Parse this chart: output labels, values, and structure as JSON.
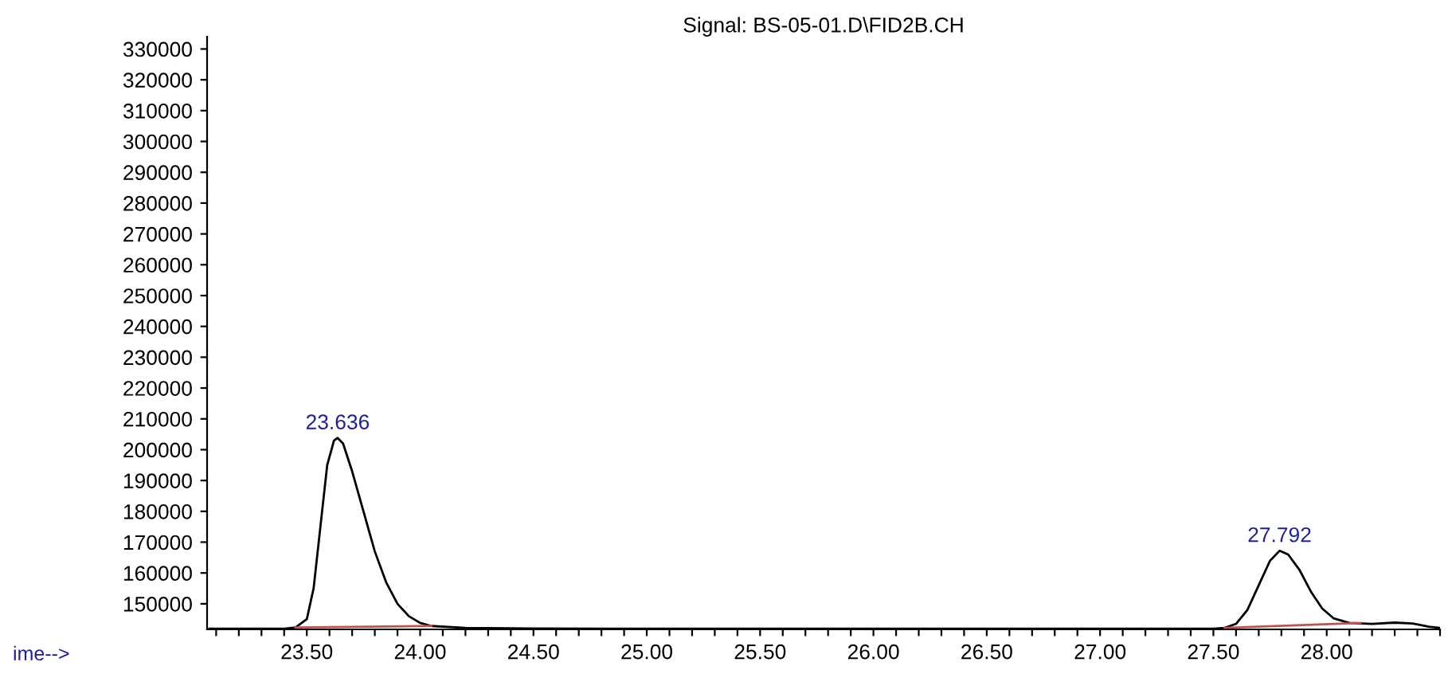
{
  "chart_data": {
    "type": "line",
    "title": "Signal: BS-05-01.D\\FID2B.CH",
    "x": [
      23.07,
      23.4,
      23.45,
      23.5,
      23.53,
      23.56,
      23.59,
      23.62,
      23.636,
      23.66,
      23.7,
      23.75,
      23.8,
      23.85,
      23.9,
      23.95,
      24.0,
      24.05,
      24.2,
      24.5,
      25.0,
      27.5,
      27.55,
      27.6,
      27.65,
      27.7,
      27.75,
      27.792,
      27.83,
      27.88,
      27.93,
      27.98,
      28.03,
      28.1,
      28.2,
      28.3,
      28.38,
      28.45,
      28.5
    ],
    "series": [
      {
        "color": "#000000",
        "values": [
          141900,
          141900,
          142300,
          145000,
          155000,
          175000,
          195000,
          203000,
          203800,
          202000,
          193000,
          180000,
          167000,
          157000,
          150000,
          146000,
          143800,
          142800,
          142200,
          142000,
          141900,
          141900,
          142200,
          143500,
          148000,
          156000,
          164000,
          167200,
          166000,
          161000,
          154000,
          148500,
          145300,
          143800,
          143500,
          143900,
          143600,
          142600,
          142200
        ]
      },
      {
        "color": "#c0504d",
        "x": [
          23.45,
          24.05
        ],
        "values": [
          142300,
          142800
        ]
      },
      {
        "color": "#c0504d",
        "x": [
          27.55,
          28.15
        ],
        "values": [
          142200,
          143800
        ]
      }
    ],
    "xlim": [
      23.06,
      28.5
    ],
    "ylim": [
      141700,
      334000
    ],
    "xticks": [
      {
        "value": 23.1,
        "label": null
      },
      {
        "value": 23.2,
        "label": null
      },
      {
        "value": 23.3,
        "label": null
      },
      {
        "value": 23.4,
        "label": null
      },
      {
        "value": 23.5,
        "label": "23.50"
      },
      {
        "value": 23.6,
        "label": null
      },
      {
        "value": 23.7,
        "label": null
      },
      {
        "value": 23.8,
        "label": null
      },
      {
        "value": 23.9,
        "label": null
      },
      {
        "value": 24.0,
        "label": "24.00"
      },
      {
        "value": 24.1,
        "label": null
      },
      {
        "value": 24.2,
        "label": null
      },
      {
        "value": 24.3,
        "label": null
      },
      {
        "value": 24.4,
        "label": null
      },
      {
        "value": 24.5,
        "label": "24.50"
      },
      {
        "value": 24.6,
        "label": null
      },
      {
        "value": 24.7,
        "label": null
      },
      {
        "value": 24.8,
        "label": null
      },
      {
        "value": 24.9,
        "label": null
      },
      {
        "value": 25.0,
        "label": "25.00"
      },
      {
        "value": 25.1,
        "label": null
      },
      {
        "value": 25.2,
        "label": null
      },
      {
        "value": 25.3,
        "label": null
      },
      {
        "value": 25.4,
        "label": null
      },
      {
        "value": 25.5,
        "label": "25.50"
      },
      {
        "value": 25.6,
        "label": null
      },
      {
        "value": 25.7,
        "label": null
      },
      {
        "value": 25.8,
        "label": null
      },
      {
        "value": 25.9,
        "label": null
      },
      {
        "value": 26.0,
        "label": "26.00"
      },
      {
        "value": 26.1,
        "label": null
      },
      {
        "value": 26.2,
        "label": null
      },
      {
        "value": 26.3,
        "label": null
      },
      {
        "value": 26.4,
        "label": null
      },
      {
        "value": 26.5,
        "label": "26.50"
      },
      {
        "value": 26.6,
        "label": null
      },
      {
        "value": 26.7,
        "label": null
      },
      {
        "value": 26.8,
        "label": null
      },
      {
        "value": 26.9,
        "label": null
      },
      {
        "value": 27.0,
        "label": "27.00"
      },
      {
        "value": 27.1,
        "label": null
      },
      {
        "value": 27.2,
        "label": null
      },
      {
        "value": 27.3,
        "label": null
      },
      {
        "value": 27.4,
        "label": null
      },
      {
        "value": 27.5,
        "label": "27.50"
      },
      {
        "value": 27.6,
        "label": null
      },
      {
        "value": 27.7,
        "label": null
      },
      {
        "value": 27.8,
        "label": null
      },
      {
        "value": 27.9,
        "label": null
      },
      {
        "value": 28.0,
        "label": "28.00"
      },
      {
        "value": 28.1,
        "label": null
      },
      {
        "value": 28.2,
        "label": null
      },
      {
        "value": 28.3,
        "label": null
      },
      {
        "value": 28.4,
        "label": null
      },
      {
        "value": 28.5,
        "label": null
      }
    ],
    "yticks": [
      150000,
      160000,
      170000,
      180000,
      190000,
      200000,
      210000,
      220000,
      230000,
      240000,
      250000,
      260000,
      270000,
      280000,
      290000,
      300000,
      310000,
      320000,
      330000
    ],
    "annotations": [
      {
        "text": "23.636",
        "x": 23.636,
        "y": 203800
      },
      {
        "text": "27.792",
        "x": 27.792,
        "y": 167200
      },
      "ime-->"
    ],
    "grid": false,
    "legend": false,
    "marker": "none",
    "line_style": "solid"
  }
}
